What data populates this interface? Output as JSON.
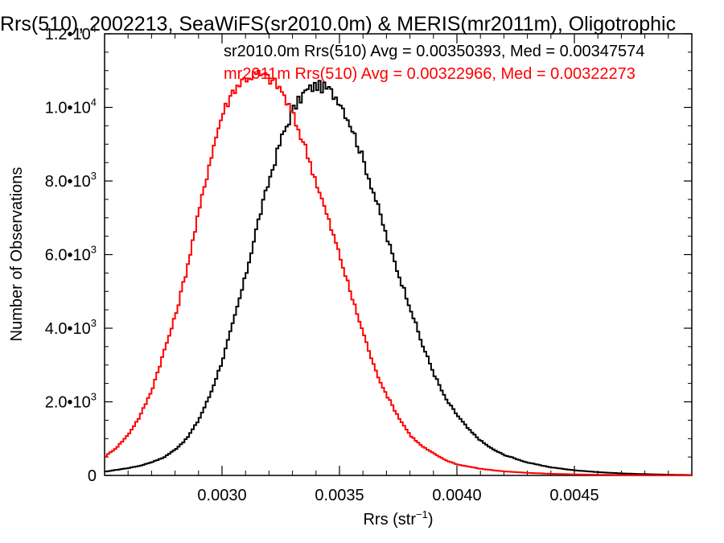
{
  "chart_data": {
    "type": "line",
    "title": "Rrs(510), 2002213, SeaWiFS(sr2010.0m) & MERIS(mr2011m), Oligotrophic",
    "xlabel": {
      "base": "Rrs (str",
      "sup": "−1",
      "close": ")"
    },
    "ylabel": "Number of Observations",
    "xlim": [
      0.0025,
      0.005
    ],
    "ylim": [
      0,
      12000
    ],
    "x_ticks": [
      {
        "value": 0.003,
        "label": "0.0030"
      },
      {
        "value": 0.0035,
        "label": "0.0035"
      },
      {
        "value": 0.004,
        "label": "0.0040"
      },
      {
        "value": 0.0045,
        "label": "0.0045"
      }
    ],
    "y_ticks": [
      {
        "value": 0,
        "mant": "0",
        "exp": ""
      },
      {
        "value": 2000,
        "mant": "2.0•10",
        "exp": "3"
      },
      {
        "value": 4000,
        "mant": "4.0•10",
        "exp": "3"
      },
      {
        "value": 6000,
        "mant": "6.0•10",
        "exp": "3"
      },
      {
        "value": 8000,
        "mant": "8.0•10",
        "exp": "3"
      },
      {
        "value": 10000,
        "mant": "1.0•10",
        "exp": "4"
      },
      {
        "value": 12000,
        "mant": "1.2•10",
        "exp": "4"
      }
    ],
    "legend": [
      {
        "text": "sr2010.0m Rrs(510) Avg = 0.00350393, Med = 0.00347574",
        "color": "#000000"
      },
      {
        "text": "mr2011m Rrs(510) Avg = 0.00322966, Med = 0.00322273",
        "color": "#ff0000"
      }
    ],
    "series": [
      {
        "color": "#000000",
        "x": [
          0.0025,
          0.00255,
          0.0026,
          0.00265,
          0.0027,
          0.00275,
          0.0028,
          0.00285,
          0.0029,
          0.00295,
          0.003,
          0.00305,
          0.0031,
          0.00315,
          0.0032,
          0.00325,
          0.0033,
          0.00335,
          0.0034,
          0.00345,
          0.0035,
          0.00355,
          0.0036,
          0.00365,
          0.0037,
          0.00375,
          0.0038,
          0.00385,
          0.0039,
          0.00395,
          0.004,
          0.00405,
          0.0041,
          0.00415,
          0.0042,
          0.0043,
          0.0044,
          0.0045,
          0.0046,
          0.0047,
          0.0048,
          0.0049,
          0.005
        ],
        "y": [
          100,
          150,
          200,
          260,
          360,
          480,
          700,
          1000,
          1500,
          2200,
          3100,
          4200,
          5400,
          6800,
          8000,
          9100,
          9900,
          10400,
          10600,
          10500,
          10200,
          9500,
          8600,
          7600,
          6500,
          5500,
          4600,
          3600,
          2800,
          2100,
          1650,
          1250,
          950,
          720,
          560,
          350,
          220,
          140,
          90,
          55,
          35,
          20,
          10
        ]
      },
      {
        "color": "#ff0000",
        "x": [
          0.0025,
          0.00255,
          0.0026,
          0.00265,
          0.0027,
          0.00275,
          0.0028,
          0.00285,
          0.0029,
          0.00295,
          0.003,
          0.00305,
          0.0031,
          0.00315,
          0.0032,
          0.00325,
          0.0033,
          0.00335,
          0.0034,
          0.00345,
          0.0035,
          0.00355,
          0.0036,
          0.00365,
          0.0037,
          0.00375,
          0.0038,
          0.00385,
          0.0039,
          0.00395,
          0.004,
          0.0041,
          0.0042,
          0.0043,
          0.0044,
          0.0045,
          0.0046,
          0.0047,
          0.0048,
          0.0049,
          0.005
        ],
        "y": [
          500,
          750,
          1100,
          1600,
          2300,
          3300,
          4300,
          5600,
          7100,
          8600,
          9800,
          10500,
          10800,
          10900,
          10800,
          10500,
          9800,
          9000,
          8000,
          7000,
          6000,
          4900,
          3900,
          2900,
          2200,
          1600,
          1100,
          800,
          600,
          420,
          300,
          180,
          110,
          70,
          45,
          28,
          18,
          12,
          8,
          5,
          3
        ]
      }
    ]
  }
}
